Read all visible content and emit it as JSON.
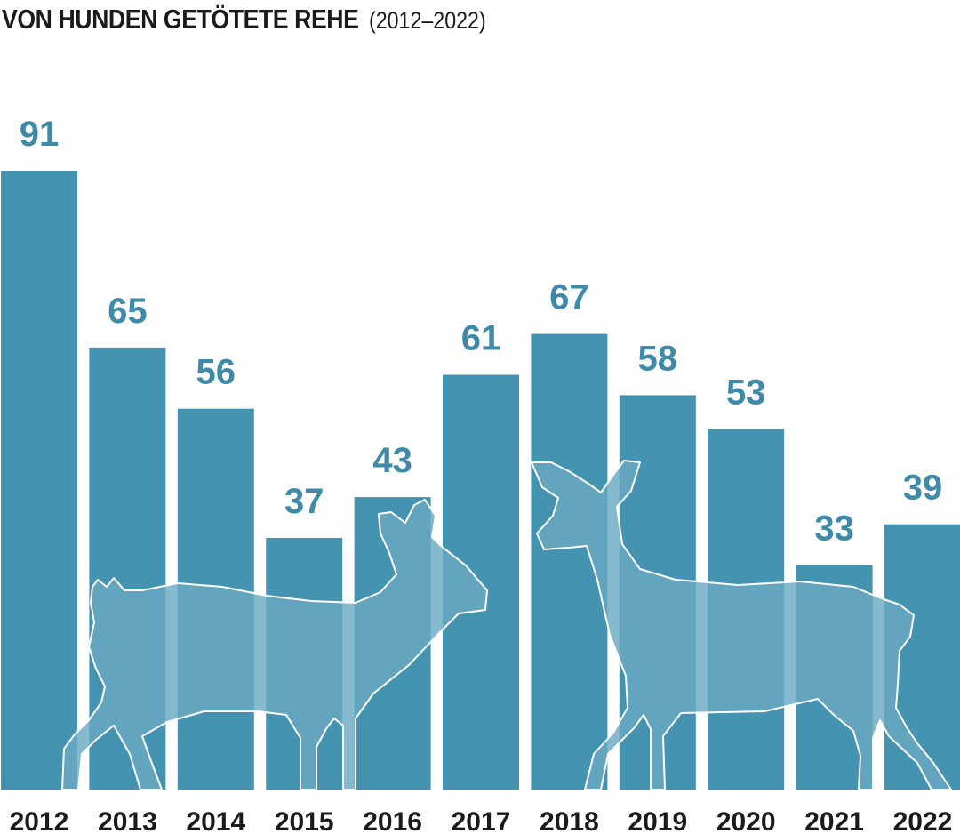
{
  "title": "VON HUNDEN GETÖTETE REHE",
  "subtitle": "(2012–2022)",
  "colors": {
    "bar": "#4493b0",
    "label": "#3e8aa8",
    "deer_fill": "#6aa9c2",
    "deer_outline": "#ffffff",
    "text": "#1a1a1a"
  },
  "chart_data": {
    "type": "bar",
    "title": "VON HUNDEN GETÖTETE REHE",
    "subtitle": "(2012–2022)",
    "categories": [
      "2012",
      "2013",
      "2014",
      "2015",
      "2016",
      "2017",
      "2018",
      "2019",
      "2020",
      "2021",
      "2022"
    ],
    "values": [
      91,
      65,
      56,
      37,
      43,
      61,
      67,
      58,
      53,
      33,
      39
    ],
    "ylim": [
      0,
      91
    ],
    "grid": false,
    "legend": "none",
    "data_labels": "above bars"
  }
}
